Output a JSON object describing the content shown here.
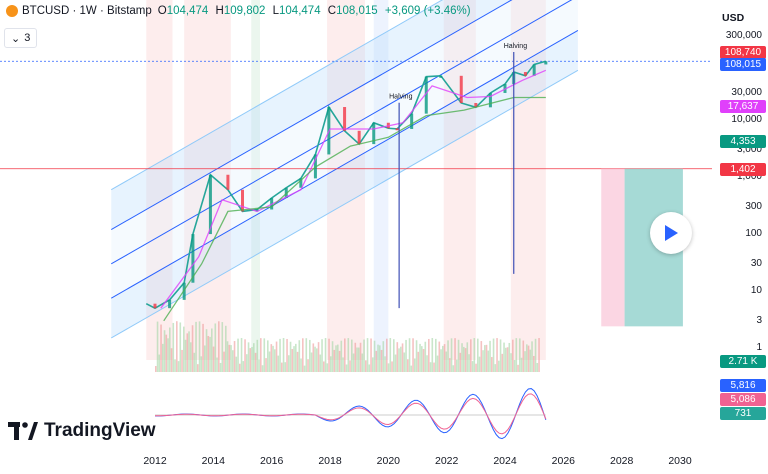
{
  "header": {
    "symbol": "BTCUSD",
    "interval": "1W",
    "exchange": "Bitstamp",
    "sep1": "·",
    "sep2": "·",
    "open_label": "O",
    "open": "104,474",
    "high_label": "H",
    "high": "109,802",
    "low_label": "L",
    "low": "104,474",
    "close_label": "C",
    "close": "108,015",
    "change": "+3,609 (+3.46%)"
  },
  "indicator_toggle": {
    "chevron": "⌄",
    "count": "3"
  },
  "currency": "USD",
  "colors": {
    "up": "#089981",
    "down": "#f23645",
    "channel": "#2962ff",
    "ma_pink": "#e040fb",
    "ma_green": "#4caf50"
  },
  "logo": {
    "text": "TradingView"
  },
  "play_icon": "play-icon",
  "chart_data": {
    "type": "line",
    "title": "BTCUSD · 1W · Bitstamp",
    "scale": "log",
    "x": [
      2011.7,
      2012.0,
      2012.5,
      2013.0,
      2013.3,
      2013.9,
      2014.5,
      2015.0,
      2015.5,
      2016.0,
      2016.5,
      2017.0,
      2017.5,
      2017.96,
      2018.5,
      2019.0,
      2019.5,
      2020.0,
      2020.3,
      2020.8,
      2021.3,
      2021.8,
      2022.5,
      2023.0,
      2023.5,
      2024.0,
      2024.3,
      2024.7,
      2025.0,
      2025.4
    ],
    "series": [
      {
        "name": "BTCUSD",
        "values": [
          6,
          5,
          7,
          14,
          100,
          1100,
          600,
          250,
          270,
          430,
          650,
          950,
          2500,
          17000,
          6500,
          3800,
          9000,
          7200,
          7000,
          13000,
          58000,
          60000,
          20000,
          16800,
          30000,
          43000,
          70000,
          60000,
          95000,
          108015
        ]
      }
    ],
    "x_ticks": [
      "2012",
      "2014",
      "2016",
      "2018",
      "2020",
      "2022",
      "2024",
      "2026",
      "2028",
      "2030"
    ],
    "y_ticks": [
      "300,000",
      "30,000",
      "10,000",
      "3,000",
      "1,000",
      "300",
      "100",
      "30",
      "10",
      "3",
      "1"
    ],
    "annotations": [
      "Halving",
      "Halving"
    ],
    "price_badges": [
      {
        "text": "108,740",
        "color": "#f23645"
      },
      {
        "text": "108,015",
        "color": "#2962ff"
      },
      {
        "text": "17,637",
        "color": "#e040fb"
      },
      {
        "text": "4,353",
        "color": "#089981"
      },
      {
        "text": "1,402",
        "color": "#f23645"
      }
    ],
    "volume_badge": "2.71 K",
    "oscillator_badges": [
      {
        "text": "5,816",
        "color": "#2962ff"
      },
      {
        "text": "5,086",
        "color": "#f06292"
      },
      {
        "text": "731",
        "color": "#26a69a"
      }
    ],
    "legend": "none",
    "grid": false
  }
}
